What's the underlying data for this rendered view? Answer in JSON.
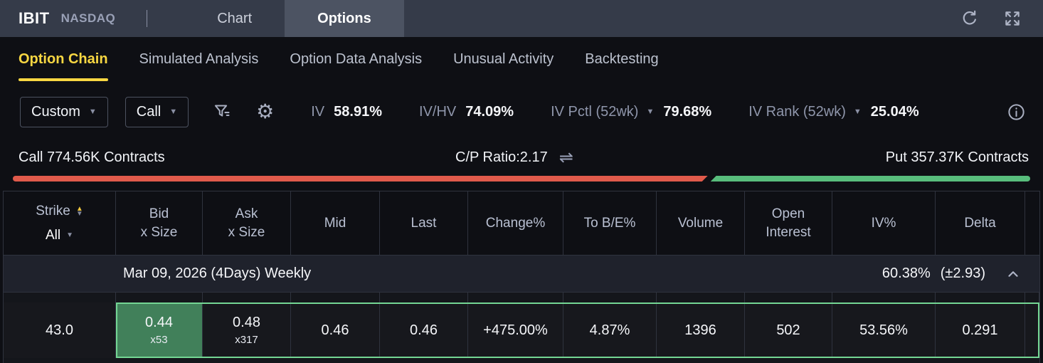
{
  "topbar": {
    "symbol": "IBIT",
    "exchange": "NASDAQ",
    "tab_chart": "Chart",
    "tab_options": "Options"
  },
  "subtabs": {
    "items": [
      {
        "label": "Option Chain"
      },
      {
        "label": "Simulated Analysis"
      },
      {
        "label": "Option Data Analysis"
      },
      {
        "label": "Unusual Activity"
      },
      {
        "label": "Backtesting"
      }
    ]
  },
  "filterbar": {
    "custom_dropdown": "Custom",
    "side_dropdown": "Call",
    "stats": [
      {
        "label": "IV",
        "value": "58.91%"
      },
      {
        "label": "IV/HV",
        "value": "74.09%"
      },
      {
        "label": "IV Pctl (52wk)",
        "value": "79.68%"
      },
      {
        "label": "IV Rank (52wk)",
        "value": "25.04%"
      }
    ]
  },
  "ratio": {
    "call_label": "Call 774.56K Contracts",
    "center_label": "C/P Ratio:2.17",
    "put_label": "Put 357.37K Contracts",
    "call_pct": 68.3,
    "call_color": "#e05a4b",
    "put_color": "#58bd7c"
  },
  "table": {
    "headers": [
      {
        "line1": "Strike",
        "filter": "All"
      },
      {
        "line1": "Bid",
        "line2": "x Size"
      },
      {
        "line1": "Ask",
        "line2": "x Size"
      },
      {
        "line1": "Mid"
      },
      {
        "line1": "Last"
      },
      {
        "line1": "Change%"
      },
      {
        "line1": "To B/E%"
      },
      {
        "line1": "Volume"
      },
      {
        "line1": "Open",
        "line2": "Interest"
      },
      {
        "line1": "IV%"
      },
      {
        "line1": "Delta"
      }
    ],
    "expiry_group": {
      "date": "Mar 09, 2026 (4Days) Weekly",
      "iv": "60.38%",
      "expected_move": "(±2.93)"
    },
    "row": {
      "strike": "43.0",
      "bid": "0.44",
      "bid_size": "x53",
      "ask": "0.48",
      "ask_size": "x317",
      "mid": "0.46",
      "last": "0.46",
      "change_pct": "+475.00%",
      "to_be_pct": "4.87%",
      "volume": "1396",
      "open_interest": "502",
      "iv_pct": "53.56%",
      "delta": "0.291"
    }
  },
  "colors": {
    "accent_yellow": "#f8d742",
    "change_red": "#e5544b",
    "bid_highlight_green": "#41805a",
    "row_outline_green": "#74d694"
  }
}
